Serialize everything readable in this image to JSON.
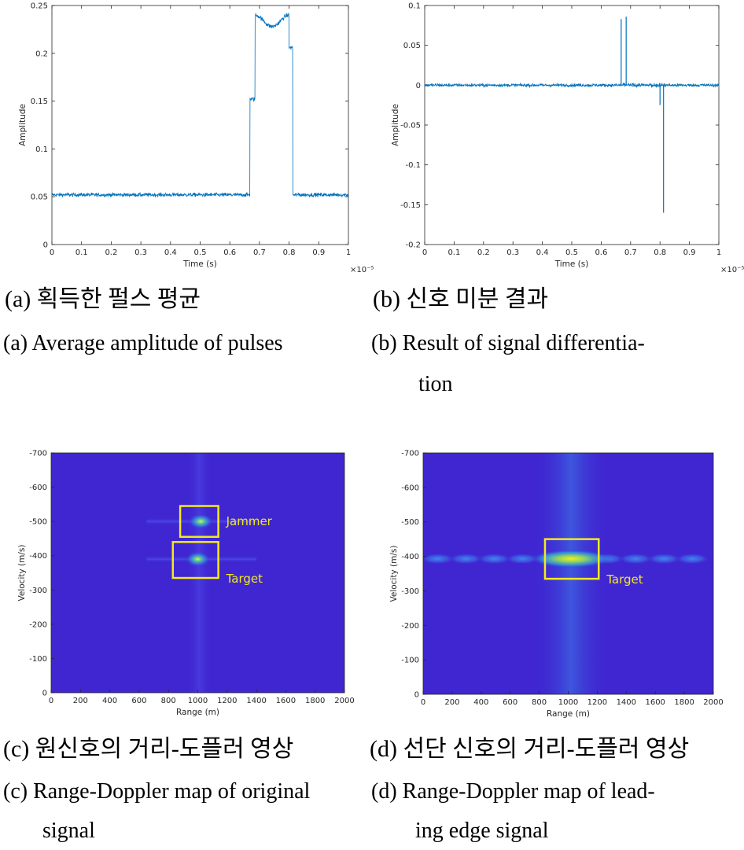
{
  "chart_data": [
    {
      "panel": "a",
      "type": "line",
      "xlabel": "Time (s)",
      "ylabel": "Amplitude",
      "xlim": [
        0,
        1
      ],
      "ylim": [
        0,
        0.25
      ],
      "x_exponent": "×10⁻⁵",
      "xticks": [
        "0",
        "0.1",
        "0.2",
        "0.3",
        "0.4",
        "0.5",
        "0.6",
        "0.7",
        "0.8",
        "0.9",
        "1"
      ],
      "yticks": [
        "0",
        "0.05",
        "0.1",
        "0.15",
        "0.2",
        "0.25"
      ],
      "color": "#0072bd",
      "segments": [
        {
          "x_start": 0,
          "x_end": 0.668,
          "level": 0.052
        },
        {
          "x_start": 0.668,
          "x_end": 0.685,
          "level": 0.152
        },
        {
          "x_start": 0.685,
          "x_end": 0.8,
          "level": 0.235
        },
        {
          "x_start": 0.8,
          "x_end": 0.812,
          "level": 0.206
        },
        {
          "x_start": 0.812,
          "x_end": 1,
          "level": 0.052
        }
      ]
    },
    {
      "panel": "b",
      "type": "line",
      "xlabel": "Time (s)",
      "ylabel": "Amplitude",
      "xlim": [
        0,
        1
      ],
      "ylim": [
        -0.2,
        0.1
      ],
      "x_exponent": "×10⁻⁵",
      "xticks": [
        "0",
        "0.1",
        "0.2",
        "0.3",
        "0.4",
        "0.5",
        "0.6",
        "0.7",
        "0.8",
        "0.9",
        "1"
      ],
      "yticks": [
        "-0.2",
        "-0.15",
        "-0.1",
        "-0.05",
        "0",
        "0.05",
        "0.1"
      ],
      "color": "#0072bd",
      "baseline": 0,
      "spikes": [
        {
          "x": 0.668,
          "y": 0.083
        },
        {
          "x": 0.685,
          "y": 0.086
        },
        {
          "x": 0.8,
          "y": -0.025
        },
        {
          "x": 0.812,
          "y": -0.16
        }
      ]
    },
    {
      "panel": "c",
      "type": "heatmap",
      "xlabel": "Range (m)",
      "ylabel": "Velocity (m/s)",
      "xlim": [
        0,
        2000
      ],
      "ylim": [
        0,
        -700
      ],
      "xticks": [
        "0",
        "200",
        "400",
        "600",
        "800",
        "1000",
        "1200",
        "1400",
        "1600",
        "1800",
        "2000"
      ],
      "yticks": [
        "-700",
        "-600",
        "-500",
        "-400",
        "-300",
        "-200",
        "-100",
        "0"
      ],
      "peaks": [
        {
          "range": 1020,
          "velocity": -500,
          "label": "Jammer"
        },
        {
          "range": 1000,
          "velocity": -390,
          "label": "Target"
        }
      ],
      "boxes": [
        {
          "label": "Jammer",
          "range": [
            880,
            1140
          ],
          "velocity": [
            -545,
            -455
          ]
        },
        {
          "label": "Target",
          "range": [
            830,
            1140
          ],
          "velocity": [
            -440,
            -335
          ]
        }
      ]
    },
    {
      "panel": "d",
      "type": "heatmap",
      "xlabel": "Range (m)",
      "ylabel": "Velocity (m/s)",
      "xlim": [
        0,
        2000
      ],
      "ylim": [
        0,
        -700
      ],
      "xticks": [
        "0",
        "200",
        "400",
        "600",
        "800",
        "1000",
        "1200",
        "1400",
        "1600",
        "1800",
        "2000"
      ],
      "yticks": [
        "-700",
        "-600",
        "-500",
        "-400",
        "-300",
        "-200",
        "-100",
        "0"
      ],
      "peaks": [
        {
          "range": 1020,
          "velocity": -393,
          "label": "Target"
        }
      ],
      "boxes": [
        {
          "label": "Target",
          "range": [
            840,
            1210
          ],
          "velocity": [
            -450,
            -335
          ]
        }
      ]
    }
  ],
  "captions": {
    "a_ko": "(a) 획득한 펄스 평균",
    "b_ko": "(b) 신호 미분 결과",
    "a_en": "(a) Average amplitude of pulses",
    "b_en_line1": "(b)  Result  of  signal  differentia-",
    "b_en_line2": "tion",
    "c_ko": "(c) 원신호의 거리-도플러 영상",
    "d_ko": "(d) 선단 신호의 거리-도플러 영상",
    "c_en_line1": "(c) Range-Doppler map of original",
    "c_en_line2": "signal",
    "d_en_line1": "(d)  Range-Doppler map of lead-",
    "d_en_line2": "ing edge signal"
  },
  "colors": {
    "line": "#0072bd",
    "heatmap_bg": "#3f26d1",
    "box": "#f2ea1c"
  }
}
